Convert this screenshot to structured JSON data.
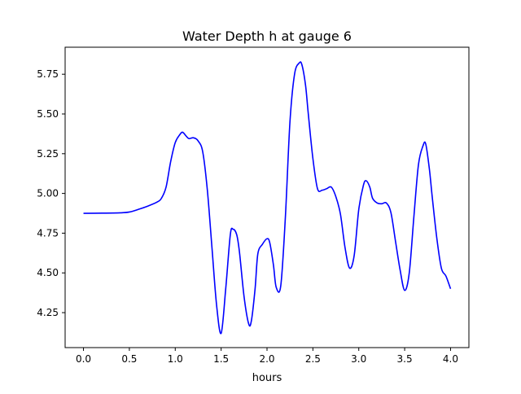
{
  "chart_data": {
    "type": "line",
    "title": "Water Depth h at gauge 6",
    "xlabel": "hours",
    "ylabel": "",
    "xlim": [
      -0.2,
      4.2
    ],
    "ylim": [
      4.03,
      5.92
    ],
    "xticks": [
      0.0,
      0.5,
      1.0,
      1.5,
      2.0,
      2.5,
      3.0,
      3.5,
      4.0
    ],
    "xtick_labels": [
      "0.0",
      "0.5",
      "1.0",
      "1.5",
      "2.0",
      "2.5",
      "3.0",
      "3.5",
      "4.0"
    ],
    "yticks": [
      4.25,
      4.5,
      4.75,
      5.0,
      5.25,
      5.5,
      5.75
    ],
    "ytick_labels": [
      "4.25",
      "4.50",
      "4.75",
      "5.00",
      "5.25",
      "5.50",
      "5.75"
    ],
    "grid": false,
    "series": [
      {
        "color": "#0000ff",
        "x": [
          0.0,
          0.2,
          0.4,
          0.5,
          0.6,
          0.7,
          0.8,
          0.85,
          0.9,
          0.95,
          1.0,
          1.05,
          1.08,
          1.12,
          1.15,
          1.2,
          1.25,
          1.3,
          1.35,
          1.4,
          1.45,
          1.5,
          1.55,
          1.6,
          1.63,
          1.67,
          1.7,
          1.75,
          1.8,
          1.83,
          1.87,
          1.9,
          1.95,
          2.0,
          2.03,
          2.07,
          2.1,
          2.15,
          2.2,
          2.25,
          2.3,
          2.35,
          2.38,
          2.42,
          2.45,
          2.5,
          2.55,
          2.6,
          2.65,
          2.7,
          2.75,
          2.8,
          2.85,
          2.9,
          2.95,
          3.0,
          3.05,
          3.08,
          3.12,
          3.15,
          3.2,
          3.25,
          3.3,
          3.35,
          3.4,
          3.45,
          3.5,
          3.55,
          3.6,
          3.65,
          3.7,
          3.73,
          3.77,
          3.8,
          3.85,
          3.9,
          3.95,
          4.0
        ],
        "y": [
          4.875,
          4.876,
          4.878,
          4.883,
          4.9,
          4.92,
          4.945,
          4.97,
          5.04,
          5.2,
          5.32,
          5.37,
          5.385,
          5.36,
          5.345,
          5.35,
          5.33,
          5.26,
          5.02,
          4.66,
          4.3,
          4.12,
          4.4,
          4.74,
          4.775,
          4.74,
          4.63,
          4.35,
          4.18,
          4.2,
          4.4,
          4.62,
          4.68,
          4.715,
          4.69,
          4.55,
          4.41,
          4.42,
          4.85,
          5.45,
          5.75,
          5.82,
          5.81,
          5.68,
          5.5,
          5.22,
          5.03,
          5.02,
          5.03,
          5.04,
          4.98,
          4.87,
          4.66,
          4.53,
          4.61,
          4.9,
          5.05,
          5.08,
          5.04,
          4.97,
          4.94,
          4.935,
          4.94,
          4.88,
          4.7,
          4.52,
          4.39,
          4.5,
          4.85,
          5.18,
          5.3,
          5.31,
          5.15,
          4.98,
          4.72,
          4.53,
          4.48,
          4.4
        ]
      }
    ]
  }
}
